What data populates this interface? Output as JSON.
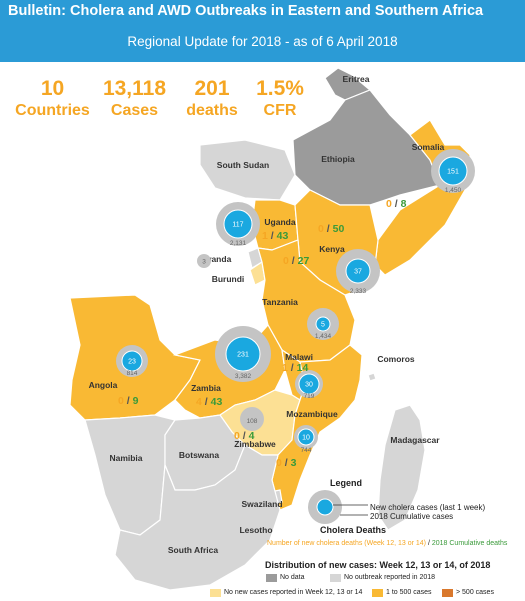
{
  "header": {
    "title": "Bulletin: Cholera and AWD Outbreaks in Eastern and Southern Africa",
    "subtitle": "Regional Update for 2018 - as of 6 April 2018"
  },
  "stats": [
    {
      "value": "10",
      "label": "Countries"
    },
    {
      "value": "13,118",
      "label": "Cases"
    },
    {
      "value": "201",
      "label": "deaths"
    },
    {
      "value": "1.5%",
      "label": "CFR"
    }
  ],
  "colors": {
    "header": "#2b9bd6",
    "stat_orange": "#f5a623",
    "no_data": "#9b9b9b",
    "no_outbreak": "#d6d6d6",
    "no_new_cases": "#fce094",
    "cases_1_500": "#f9b934",
    "cases_over_500": "#d9782c",
    "new_cases_bubble": "#1aa8e0",
    "cumulative_bubble": "#c4c4c4",
    "deaths_text": "#f5a623",
    "cumulative_deaths_text": "#3a9a3a",
    "water": "#ffffff"
  },
  "countries": [
    {
      "name": "Eritrea",
      "status": "no_data"
    },
    {
      "name": "Ethiopia",
      "status": "no_data"
    },
    {
      "name": "Somalia",
      "status": "cases_1_500",
      "deaths_new": "0",
      "deaths_cum": "8",
      "new_cases": "151",
      "cum_cases": "1,450"
    },
    {
      "name": "South Sudan",
      "status": "no_outbreak"
    },
    {
      "name": "Uganda",
      "status": "cases_1_500",
      "deaths_new": "1",
      "deaths_cum": "43",
      "new_cases": "117",
      "cum_cases": "2,131"
    },
    {
      "name": "Kenya",
      "status": "cases_1_500",
      "deaths_new": "0",
      "deaths_cum": "50",
      "new_cases": "37",
      "cum_cases": "2,333"
    },
    {
      "name": "Rwanda",
      "status": "no_outbreak",
      "cum_cases": "3"
    },
    {
      "name": "Burundi",
      "status": "no_new_cases"
    },
    {
      "name": "Tanzania",
      "status": "cases_1_500",
      "deaths_new": "0",
      "deaths_cum": "27",
      "new_cases": "5",
      "cum_cases": "1,434"
    },
    {
      "name": "Angola",
      "status": "cases_1_500",
      "deaths_new": "0",
      "deaths_cum": "9",
      "new_cases": "23",
      "cum_cases": "814"
    },
    {
      "name": "Zambia",
      "status": "cases_1_500",
      "deaths_new": "4",
      "deaths_cum": "43",
      "new_cases": "231",
      "cum_cases": "3,382"
    },
    {
      "name": "Malawi",
      "status": "cases_1_500",
      "deaths_new": "1",
      "deaths_cum": "14",
      "new_cases": "30",
      "cum_cases": "719"
    },
    {
      "name": "Zimbabwe",
      "status": "no_new_cases",
      "deaths_new": "0",
      "deaths_cum": "4",
      "cum_cases": "108"
    },
    {
      "name": "Mozambique",
      "status": "cases_1_500",
      "deaths_new": "0",
      "deaths_cum": "3",
      "new_cases": "10",
      "cum_cases": "744"
    },
    {
      "name": "Comoros",
      "status": "no_outbreak"
    },
    {
      "name": "Madagascar",
      "status": "no_outbreak"
    },
    {
      "name": "Namibia",
      "status": "no_outbreak"
    },
    {
      "name": "Botswana",
      "status": "no_outbreak"
    },
    {
      "name": "Swaziland",
      "status": "no_outbreak"
    },
    {
      "name": "Lesotho",
      "status": "no_outbreak"
    },
    {
      "name": "South Africa",
      "status": "no_outbreak"
    }
  ],
  "legend": {
    "title": "Legend",
    "new_cases": "New cholera cases (last 1 week)",
    "cumulative_cases": "2018 Cumulative cases",
    "deaths_title": "Cholera Deaths",
    "deaths_new_text": "Number of new cholera deaths (Week 12, 13 or 14)",
    "deaths_sep": " / ",
    "deaths_cum_text": "2018 Cumulative deaths",
    "distribution_title": "Distribution of new cases: Week 12, 13 or 14, of 2018",
    "no_data": "No data",
    "no_outbreak": "No outbreak reported in 2018",
    "no_new_cases": "No new cases reported in Week 12, 13 or 14",
    "cases_1_500": "1 to 500 cases",
    "cases_over_500": "> 500 cases"
  }
}
